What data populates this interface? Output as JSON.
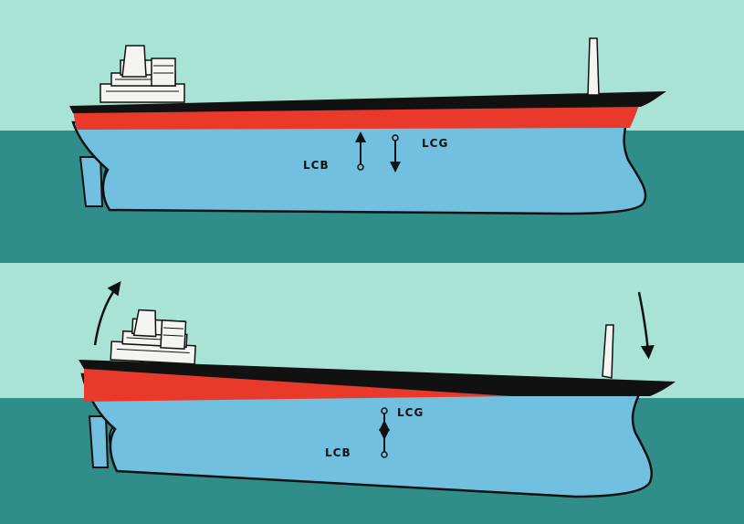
{
  "colors": {
    "sky": "#a9e3d6",
    "water": "#2f8e8a",
    "hull": "#72c0df",
    "boot_stripe": "#e8392b",
    "deck_line": "#111111",
    "superstructure": "#f4f4f2"
  },
  "panels": [
    {
      "id": "even-keel",
      "lcb_label": "LCB",
      "lcg_label": "LCG",
      "lcb_arrow": "up",
      "lcg_arrow": "down"
    },
    {
      "id": "trimmed-by-head",
      "lcb_label": "LCB",
      "lcg_label": "LCG",
      "lcb_arrow": "up",
      "lcg_arrow": "down",
      "rotation_arrows": [
        "stern-up-arrow",
        "bow-down-arrow"
      ]
    }
  ]
}
